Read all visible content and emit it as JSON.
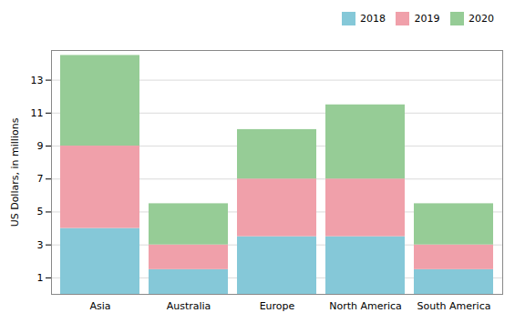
{
  "chart_data": {
    "type": "bar",
    "stacked": true,
    "categories": [
      "Asia",
      "Australia",
      "Europe",
      "North America",
      "South America"
    ],
    "series": [
      {
        "name": "2018",
        "color": "#85c8d8",
        "values": [
          4.0,
          1.5,
          3.5,
          3.5,
          1.5
        ]
      },
      {
        "name": "2019",
        "color": "#f0a0aa",
        "values": [
          5.0,
          1.5,
          3.5,
          3.5,
          1.5
        ]
      },
      {
        "name": "2020",
        "color": "#96cc96",
        "values": [
          5.5,
          2.5,
          3.0,
          4.5,
          2.5
        ]
      }
    ],
    "ylabel": "US Dollars, in millions",
    "ylim": [
      0.0,
      14.8
    ],
    "yticks": [
      1,
      3,
      5,
      7,
      9,
      11,
      13
    ],
    "grid": true,
    "legend": "upper right"
  }
}
